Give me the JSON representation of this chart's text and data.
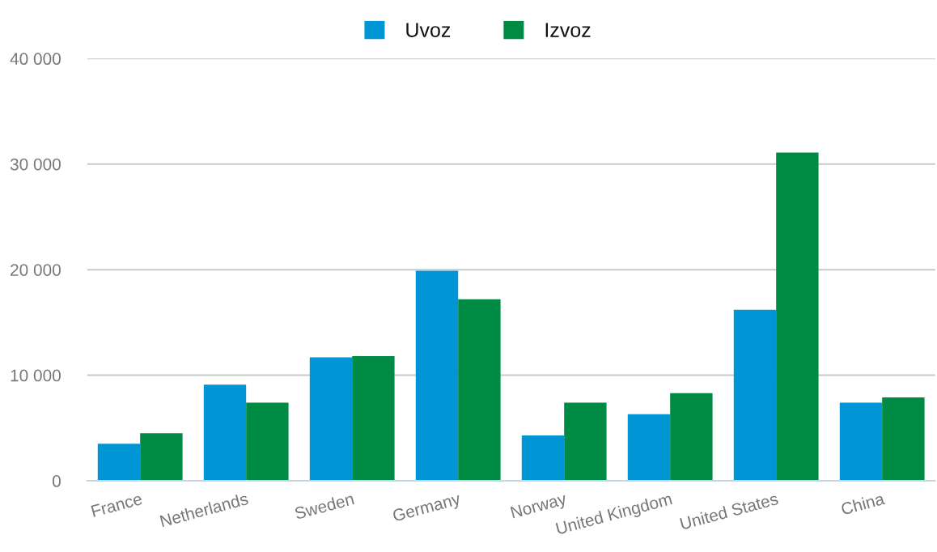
{
  "chart_data": {
    "type": "bar",
    "categories": [
      "France",
      "Netherlands",
      "Sweden",
      "Germany",
      "Norway",
      "United Kingdom",
      "United States",
      "China"
    ],
    "series": [
      {
        "name": "Uvoz",
        "color": "#0096d6",
        "values": [
          3500,
          9100,
          11700,
          19900,
          4300,
          6300,
          16200,
          7400
        ]
      },
      {
        "name": "Izvoz",
        "color": "#008b45",
        "values": [
          4500,
          7400,
          11800,
          17200,
          7400,
          8300,
          31100,
          7900
        ]
      }
    ],
    "ylim": [
      0,
      40000
    ],
    "yticks": [
      {
        "value": 0,
        "label": "0"
      },
      {
        "value": 10000,
        "label": "10 000"
      },
      {
        "value": 20000,
        "label": "20 000"
      },
      {
        "value": 30000,
        "label": "30 000"
      },
      {
        "value": 40000,
        "label": "40 000"
      }
    ],
    "grid": "y",
    "legend": "top"
  }
}
